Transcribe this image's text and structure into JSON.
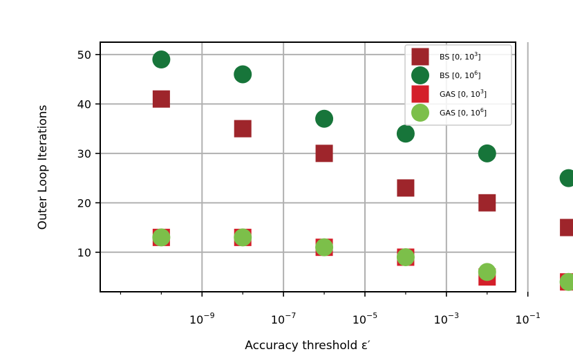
{
  "chart_data": {
    "type": "scatter",
    "title": "",
    "xlabel": "Accuracy threshold ε′",
    "ylabel": "Outer Loop Iterations",
    "xscale": "log",
    "xlim_exp": [
      -11.5,
      -1.3
    ],
    "ylim": [
      2,
      52.5
    ],
    "grid": true,
    "legend_position": "top-right",
    "x_exponents": [
      -10,
      -8,
      -6,
      -4,
      -2,
      0
    ],
    "xticks": [
      {
        "exp": -9,
        "base": "10",
        "sup": "−9"
      },
      {
        "exp": -7,
        "base": "10",
        "sup": "−7"
      },
      {
        "exp": -5,
        "base": "10",
        "sup": "−5"
      },
      {
        "exp": -3,
        "base": "10",
        "sup": "−3"
      },
      {
        "exp": -1,
        "base": "10",
        "sup": "−1"
      }
    ],
    "yticks": [
      {
        "value": 10,
        "label": "10"
      },
      {
        "value": 20,
        "label": "20"
      },
      {
        "value": 30,
        "label": "30"
      },
      {
        "value": 40,
        "label": "40"
      },
      {
        "value": 50,
        "label": "50"
      }
    ],
    "series": [
      {
        "name": "BS [0, 10³]",
        "label_base": "BS [0, 10",
        "label_sup": "3",
        "label_end": "]",
        "marker": "square",
        "color": "#9e252b",
        "values": [
          41,
          35,
          30,
          23,
          20,
          15
        ]
      },
      {
        "name": "BS [0, 10⁶]",
        "label_base": "BS [0, 10",
        "label_sup": "6",
        "label_end": "]",
        "marker": "circle",
        "color": "#17753a",
        "values": [
          49,
          46,
          37,
          34,
          30,
          25
        ]
      },
      {
        "name": "GAS [0, 10³]",
        "label_base": "GAS [0, 10",
        "label_sup": "3",
        "label_end": "]",
        "marker": "square",
        "color": "#d41f2a",
        "values": [
          13,
          13,
          11,
          9,
          5,
          4
        ]
      },
      {
        "name": "GAS [0, 10⁶]",
        "label_base": "GAS [0, 10",
        "label_sup": "6",
        "label_end": "]",
        "marker": "circle",
        "color": "#7cbf4a",
        "values": [
          13,
          13,
          11,
          9,
          6,
          4
        ]
      }
    ]
  }
}
